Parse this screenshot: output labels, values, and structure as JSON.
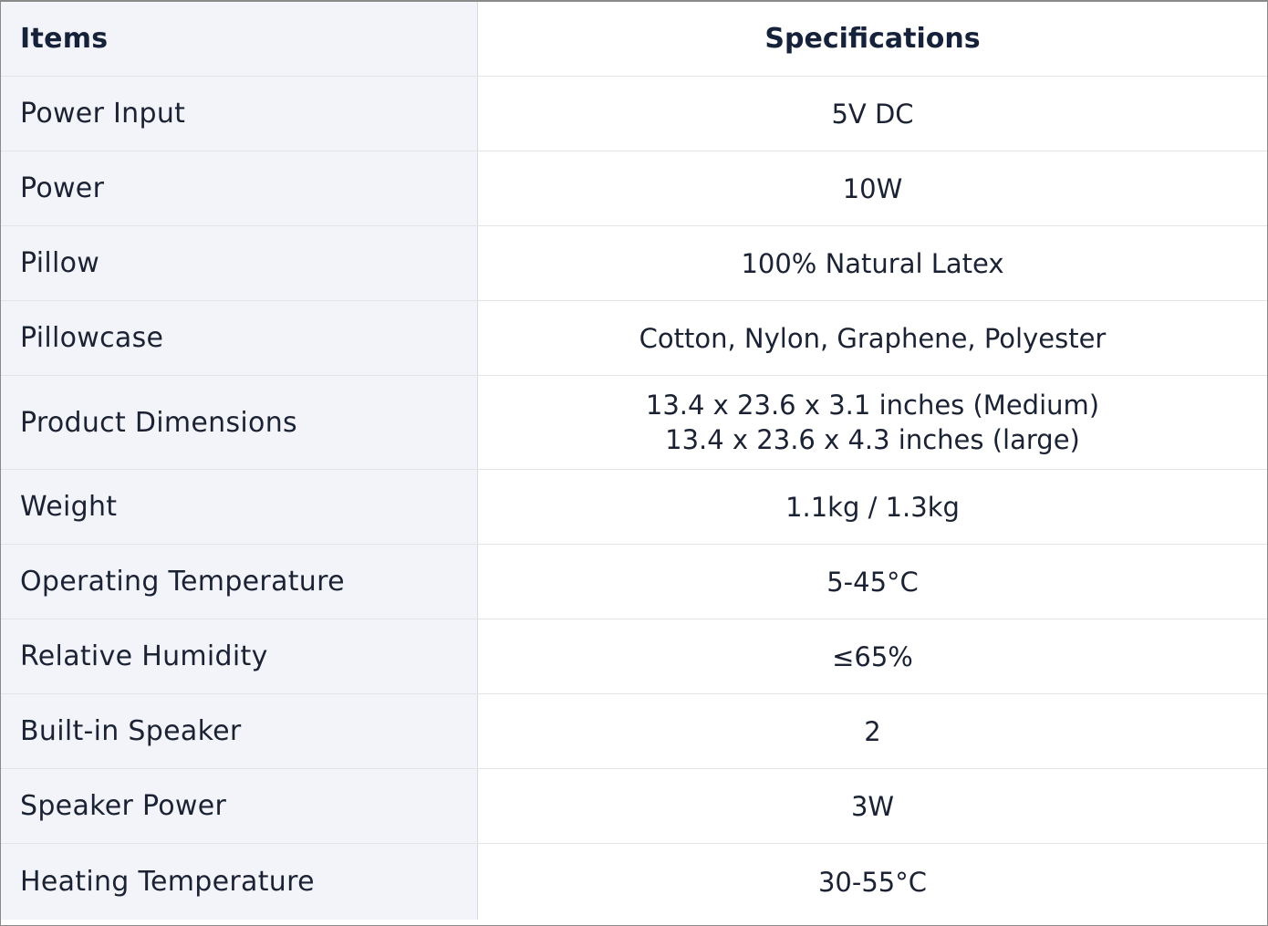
{
  "header": {
    "items": "Items",
    "specifications": "Specifications"
  },
  "rows": [
    {
      "item": "Power Input",
      "spec": [
        "5V DC"
      ]
    },
    {
      "item": "Power",
      "spec": [
        "10W"
      ]
    },
    {
      "item": "Pillow",
      "spec": [
        "100% Natural Latex"
      ]
    },
    {
      "item": "Pillowcase",
      "spec": [
        "Cotton, Nylon, Graphene, Polyester"
      ]
    },
    {
      "item": "Product Dimensions",
      "spec": [
        "13.4 x 23.6 x 3.1 inches (Medium)",
        "13.4 x 23.6 x 4.3 inches (large)"
      ]
    },
    {
      "item": "Weight",
      "spec": [
        "1.1kg / 1.3kg"
      ]
    },
    {
      "item": "Operating Temperature",
      "spec": [
        "5-45°C"
      ]
    },
    {
      "item": "Relative Humidity",
      "spec": [
        "≤65%"
      ]
    },
    {
      "item": "Built-in Speaker",
      "spec": [
        "2"
      ]
    },
    {
      "item": "Speaker Power",
      "spec": [
        "3W"
      ]
    },
    {
      "item": "Heating Temperature",
      "spec": [
        "30-55°C"
      ]
    }
  ]
}
